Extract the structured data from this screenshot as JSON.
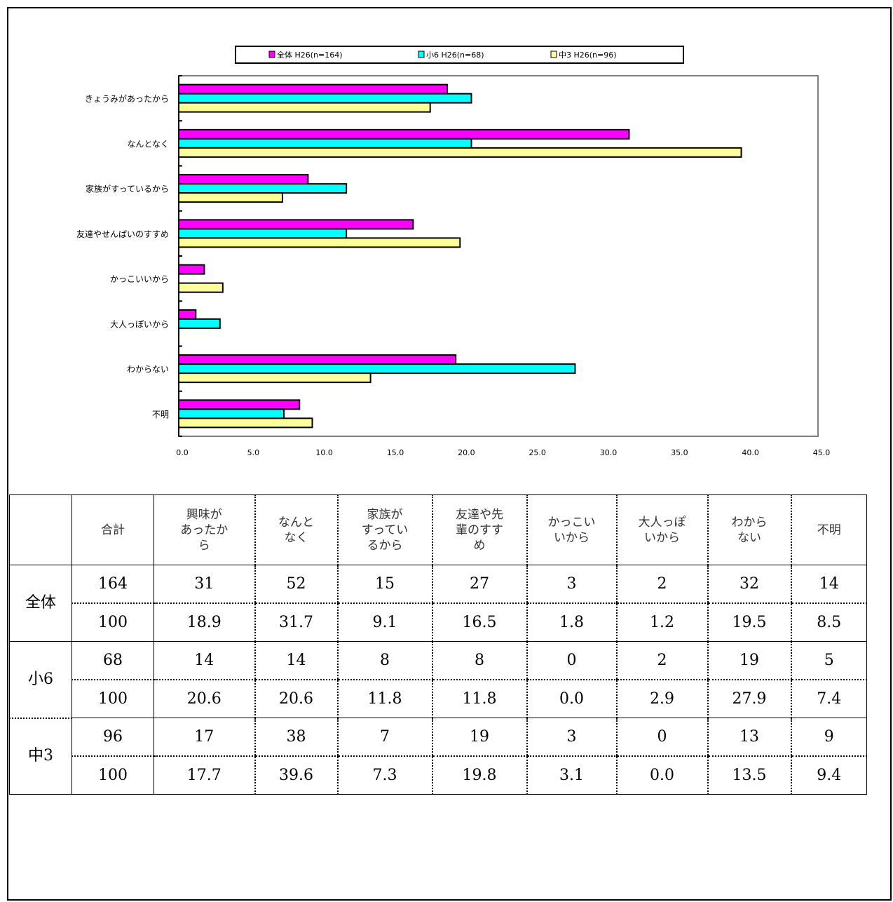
{
  "chart_data": {
    "type": "bar",
    "orientation": "horizontal",
    "categories": [
      "きょうみがあったから",
      "なんとなく",
      "家族がすっているから",
      "友達やせんぱいのすすめ",
      "かっこいいから",
      "大人っぽいから",
      "わからない",
      "不明"
    ],
    "series": [
      {
        "name": "全体 H26(n=164)",
        "color": "#ff00ff",
        "values": [
          18.9,
          31.7,
          9.1,
          16.5,
          1.8,
          1.2,
          19.5,
          8.5
        ]
      },
      {
        "name": "小6 H26(n=68)",
        "color": "#00ffff",
        "values": [
          20.6,
          20.6,
          11.8,
          11.8,
          0.0,
          2.9,
          27.9,
          7.4
        ]
      },
      {
        "name": "中3 H26(n=96)",
        "color": "#ffff99",
        "values": [
          17.7,
          39.6,
          7.3,
          19.8,
          3.1,
          0.0,
          13.5,
          9.4
        ]
      }
    ],
    "xlim": [
      0,
      45
    ],
    "xticks": [
      "0.0",
      "5.0",
      "10.0",
      "15.0",
      "20.0",
      "25.0",
      "30.0",
      "35.0",
      "40.0",
      "45.0"
    ],
    "grid": false,
    "legend_position": "top"
  },
  "table": {
    "headers": [
      "",
      "合計",
      "興味があったから",
      "なんとなく",
      "家族がすっているから",
      "友達や先輩のすすめ",
      "かっこいいから",
      "大人っぽいから",
      "わからない",
      "不明"
    ],
    "header_lines": [
      [],
      [
        "合計"
      ],
      [
        "興味が",
        "あったか",
        "ら"
      ],
      [
        "なんと",
        "なく"
      ],
      [
        "家族が",
        "すってい",
        "るから"
      ],
      [
        "友達や先",
        "輩のすす",
        "め"
      ],
      [
        "かっこい",
        "いから"
      ],
      [
        "大人っぽ",
        "いから"
      ],
      [
        "わから",
        "ない"
      ],
      [
        "不明"
      ]
    ],
    "groups": [
      {
        "label": "全体",
        "counts": [
          "164",
          "31",
          "52",
          "15",
          "27",
          "3",
          "2",
          "32",
          "14"
        ],
        "percents": [
          "100",
          "18.9",
          "31.7",
          "9.1",
          "16.5",
          "1.8",
          "1.2",
          "19.5",
          "8.5"
        ]
      },
      {
        "label": "小6",
        "counts": [
          "68",
          "14",
          "14",
          "8",
          "8",
          "0",
          "2",
          "19",
          "5"
        ],
        "percents": [
          "100",
          "20.6",
          "20.6",
          "11.8",
          "11.8",
          "0.0",
          "2.9",
          "27.9",
          "7.4"
        ]
      },
      {
        "label": "中3",
        "counts": [
          "96",
          "17",
          "38",
          "7",
          "19",
          "3",
          "0",
          "13",
          "9"
        ],
        "percents": [
          "100",
          "17.7",
          "39.6",
          "7.3",
          "19.8",
          "3.1",
          "0.0",
          "13.5",
          "9.4"
        ]
      }
    ]
  }
}
